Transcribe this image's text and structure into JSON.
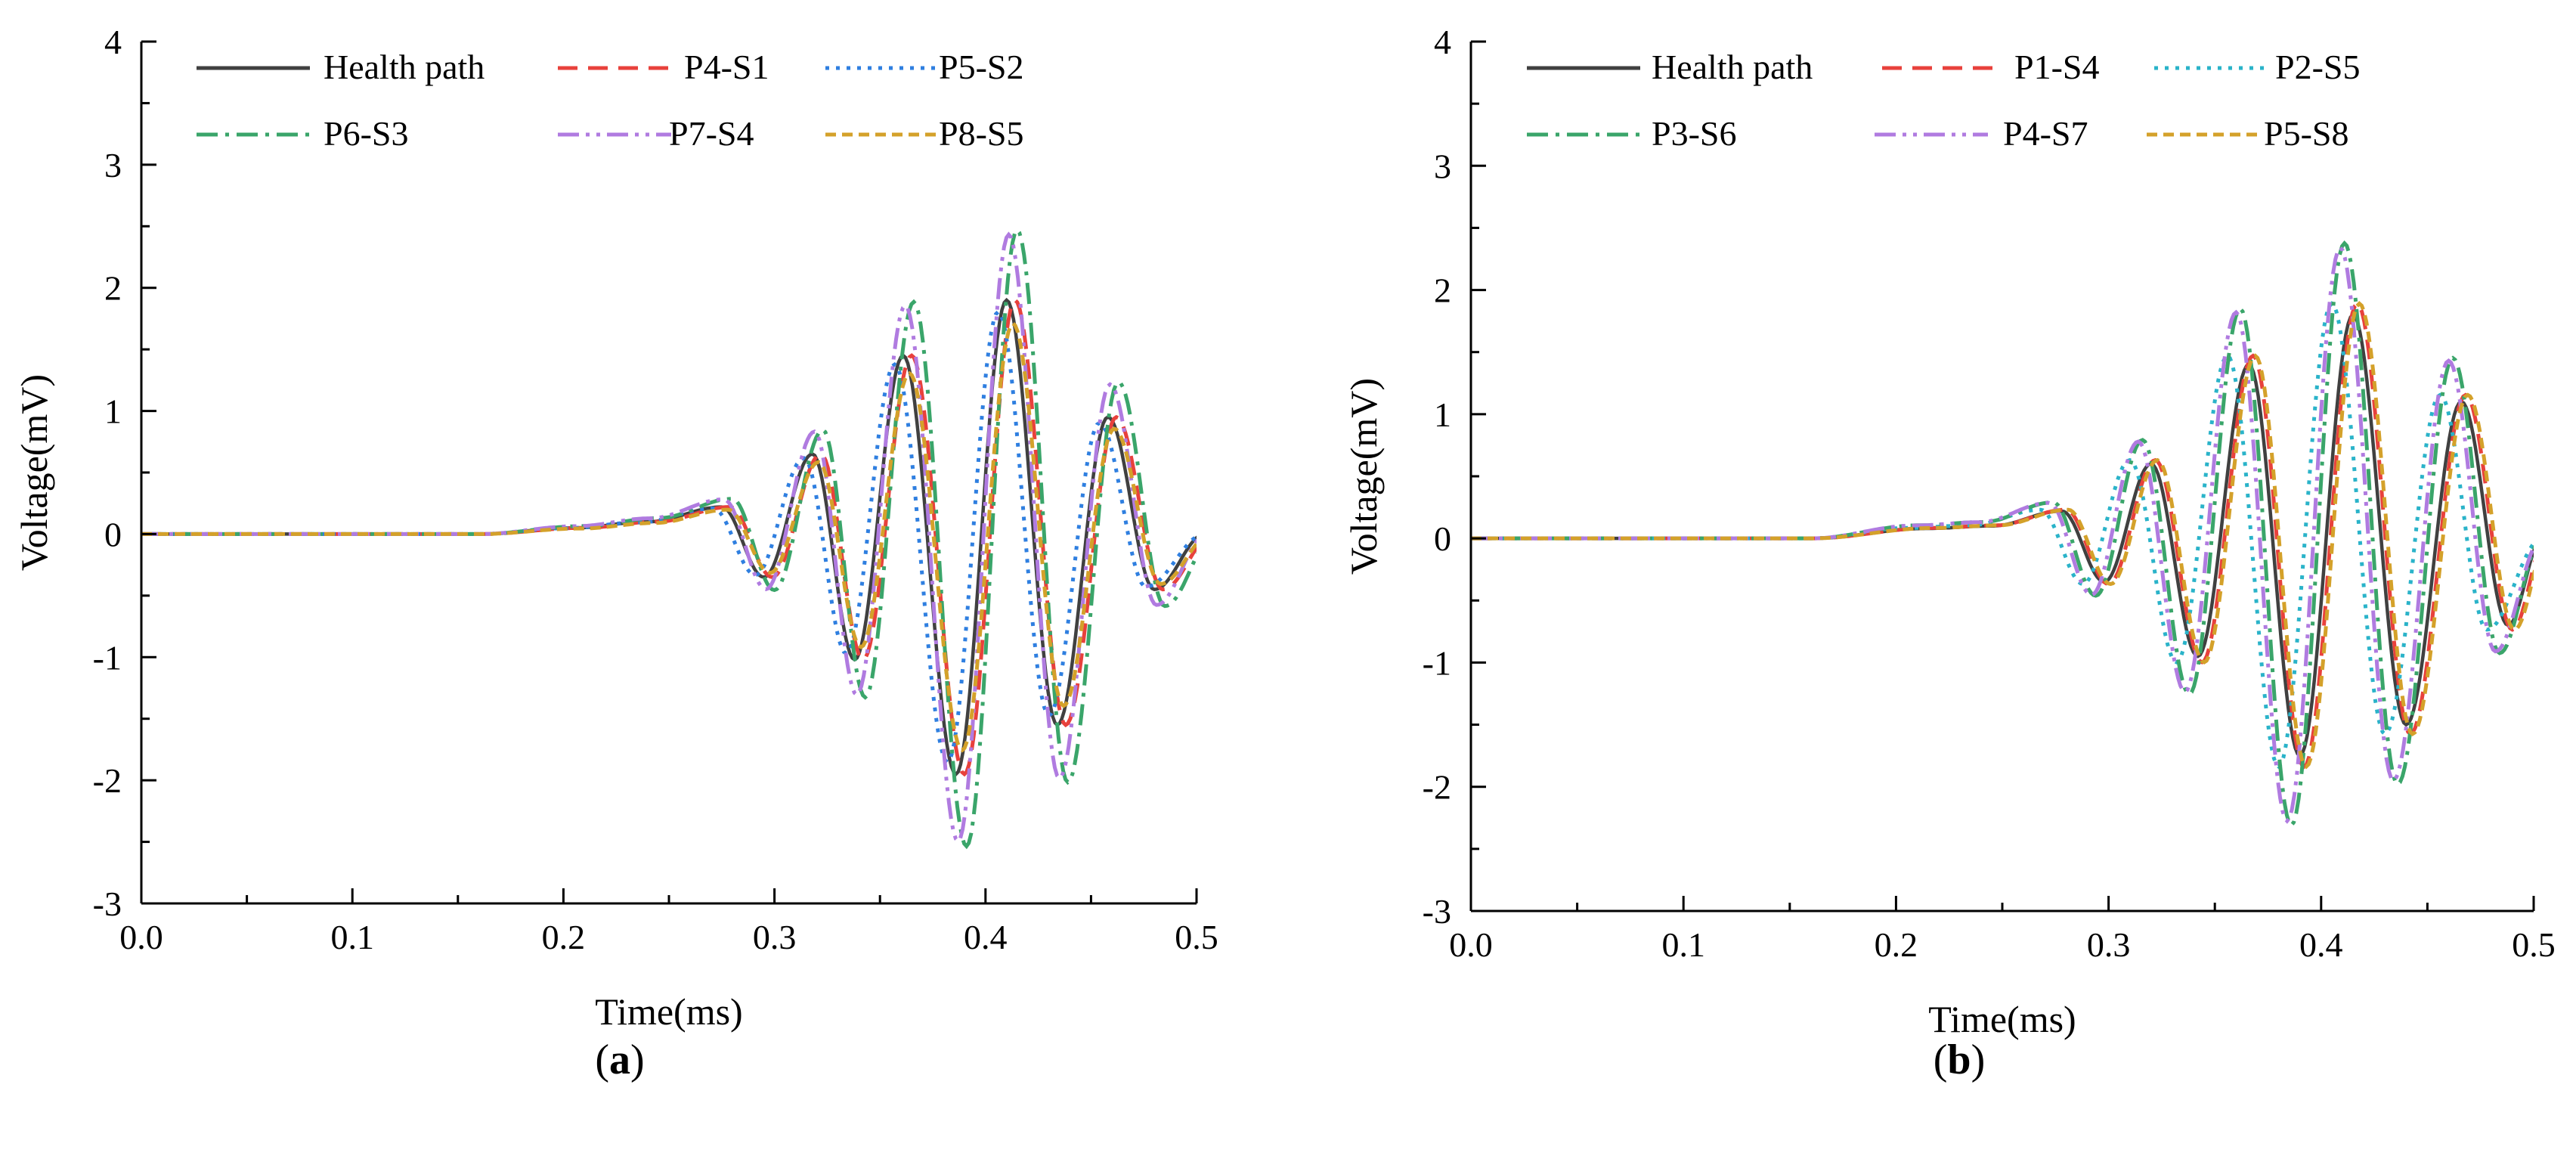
{
  "captions": [
    "(a)",
    "(b)"
  ],
  "chart_data": [
    {
      "type": "line",
      "panel": "(a)",
      "xlabel": "Time(ms)",
      "ylabel": "Voltage(mV)",
      "xlim": [
        0.0,
        0.5
      ],
      "ylim": [
        -3,
        4
      ],
      "xticks": [
        "0.0",
        "0.1",
        "0.2",
        "0.3",
        "0.4",
        "0.5"
      ],
      "yticks": [
        "-3",
        "-2",
        "-1",
        "0",
        "1",
        "2",
        "3",
        "4"
      ],
      "legend_position": "top",
      "series": [
        {
          "name": "Health path",
          "color": "#404040",
          "dash": "solid",
          "shift": 0.0,
          "scale": 1.0
        },
        {
          "name": "P4-S1",
          "color": "#e8413c",
          "dash": "dash",
          "shift": 0.004,
          "scale": 1.0
        },
        {
          "name": "P5-S2",
          "color": "#2f7fe0",
          "dash": "dot",
          "shift": -0.004,
          "scale": 0.95
        },
        {
          "name": "P6-S3",
          "color": "#3aa56a",
          "dash": "dashdot",
          "shift": 0.005,
          "scale": 1.3
        },
        {
          "name": "P7-S4",
          "color": "#b07be0",
          "dash": "dashdotdot",
          "shift": 0.001,
          "scale": 1.28
        },
        {
          "name": "P8-S5",
          "color": "#d4a12a",
          "dash": "shortdash",
          "shift": 0.003,
          "scale": 0.9
        }
      ],
      "envelope_peaks": [
        {
          "t": 0.205,
          "v": 0.05
        },
        {
          "t": 0.24,
          "v": 0.1
        },
        {
          "t": 0.275,
          "v": 0.22
        },
        {
          "t": 0.295,
          "v": -0.35
        },
        {
          "t": 0.318,
          "v": 0.65
        },
        {
          "t": 0.338,
          "v": -1.02
        },
        {
          "t": 0.361,
          "v": 1.45
        },
        {
          "t": 0.386,
          "v": -1.95
        },
        {
          "t": 0.41,
          "v": 1.9
        },
        {
          "t": 0.434,
          "v": -1.55
        },
        {
          "t": 0.458,
          "v": 0.95
        },
        {
          "t": 0.48,
          "v": -0.45
        }
      ]
    },
    {
      "type": "line",
      "panel": "(b)",
      "xlabel": "Time(ms)",
      "ylabel": "Voltage(mV)",
      "xlim": [
        0.0,
        0.5
      ],
      "ylim": [
        -3,
        4
      ],
      "xticks": [
        "0.0",
        "0.1",
        "0.2",
        "0.3",
        "0.4",
        "0.5"
      ],
      "yticks": [
        "-3",
        "-2",
        "-1",
        "0",
        "1",
        "2",
        "3",
        "4"
      ],
      "legend_position": "top",
      "series": [
        {
          "name": "Health path",
          "color": "#404040",
          "dash": "solid",
          "shift": 0.0,
          "scale": 1.0
        },
        {
          "name": "P1-S4",
          "color": "#e8413c",
          "dash": "dash",
          "shift": 0.002,
          "scale": 1.05
        },
        {
          "name": "P2-S5",
          "color": "#2ab3c9",
          "dash": "dot",
          "shift": -0.01,
          "scale": 1.05
        },
        {
          "name": "P3-S6",
          "color": "#3aa56a",
          "dash": "dashdot",
          "shift": -0.004,
          "scale": 1.32
        },
        {
          "name": "P4-S7",
          "color": "#b07be0",
          "dash": "dashdotdot",
          "shift": -0.006,
          "scale": 1.3
        },
        {
          "name": "P5-S8",
          "color": "#d4a12a",
          "dash": "shortdash",
          "shift": 0.003,
          "scale": 1.05
        }
      ],
      "envelope_peaks": [
        {
          "t": 0.215,
          "v": 0.08
        },
        {
          "t": 0.245,
          "v": 0.1
        },
        {
          "t": 0.278,
          "v": 0.22
        },
        {
          "t": 0.298,
          "v": -0.35
        },
        {
          "t": 0.32,
          "v": 0.6
        },
        {
          "t": 0.342,
          "v": -0.95
        },
        {
          "t": 0.366,
          "v": 1.4
        },
        {
          "t": 0.39,
          "v": -1.75
        },
        {
          "t": 0.415,
          "v": 1.8
        },
        {
          "t": 0.44,
          "v": -1.5
        },
        {
          "t": 0.466,
          "v": 1.1
        },
        {
          "t": 0.488,
          "v": -0.7
        }
      ]
    }
  ]
}
